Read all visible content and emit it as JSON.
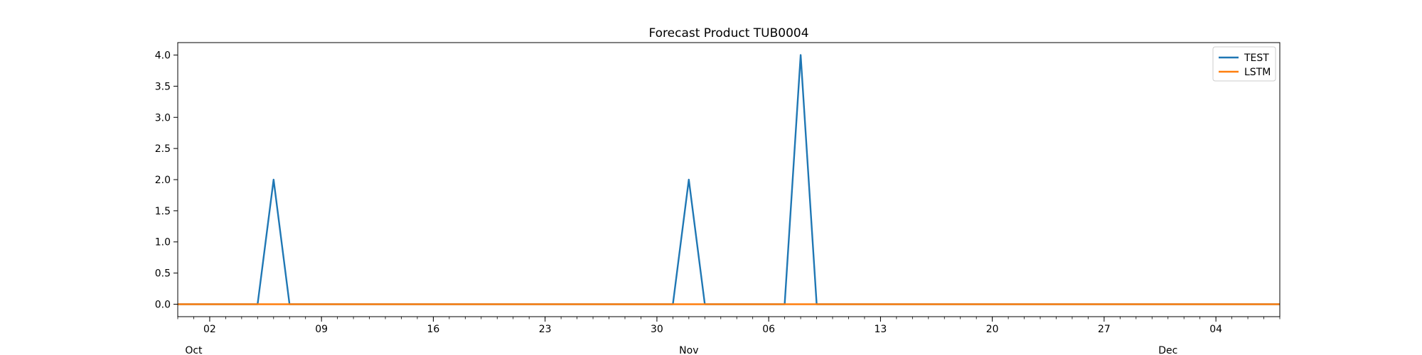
{
  "chart_data": {
    "type": "line",
    "title": "Forecast Product TUB0004",
    "xlabel": "",
    "ylabel": "",
    "x_range": [
      "2023-09-30",
      "2023-12-08"
    ],
    "ylim": [
      -0.2,
      4.2
    ],
    "yticks": [
      0.0,
      0.5,
      1.0,
      1.5,
      2.0,
      2.5,
      3.0,
      3.5,
      4.0
    ],
    "ytick_labels": [
      "0.0",
      "0.5",
      "1.0",
      "1.5",
      "2.0",
      "2.5",
      "3.0",
      "3.5",
      "4.0"
    ],
    "xticks_major": [
      {
        "date": "2023-10-02",
        "label": "02"
      },
      {
        "date": "2023-10-09",
        "label": "09"
      },
      {
        "date": "2023-10-16",
        "label": "16"
      },
      {
        "date": "2023-10-23",
        "label": "23"
      },
      {
        "date": "2023-10-30",
        "label": "30"
      },
      {
        "date": "2023-11-06",
        "label": "06"
      },
      {
        "date": "2023-11-13",
        "label": "13"
      },
      {
        "date": "2023-11-20",
        "label": "20"
      },
      {
        "date": "2023-11-27",
        "label": "27"
      },
      {
        "date": "2023-12-04",
        "label": "04"
      }
    ],
    "month_labels": [
      {
        "date": "2023-10-01",
        "label": "Oct"
      },
      {
        "date": "2023-11-01",
        "label": "Nov"
      },
      {
        "date": "2023-12-01",
        "label": "Dec"
      }
    ],
    "grid": false,
    "legend_position": "top-right",
    "series": [
      {
        "name": "TEST",
        "color": "#1f77b4",
        "points": [
          {
            "x": "2023-09-30",
            "y": 0
          },
          {
            "x": "2023-10-05",
            "y": 0
          },
          {
            "x": "2023-10-06",
            "y": 2
          },
          {
            "x": "2023-10-07",
            "y": 0
          },
          {
            "x": "2023-10-31",
            "y": 0
          },
          {
            "x": "2023-11-01",
            "y": 2
          },
          {
            "x": "2023-11-02",
            "y": 0
          },
          {
            "x": "2023-11-07",
            "y": 0
          },
          {
            "x": "2023-11-08",
            "y": 4
          },
          {
            "x": "2023-11-09",
            "y": 0
          },
          {
            "x": "2023-12-08",
            "y": 0
          }
        ]
      },
      {
        "name": "LSTM",
        "color": "#ff7f0e",
        "points": [
          {
            "x": "2023-09-30",
            "y": 0
          },
          {
            "x": "2023-12-08",
            "y": 0
          }
        ]
      }
    ]
  }
}
